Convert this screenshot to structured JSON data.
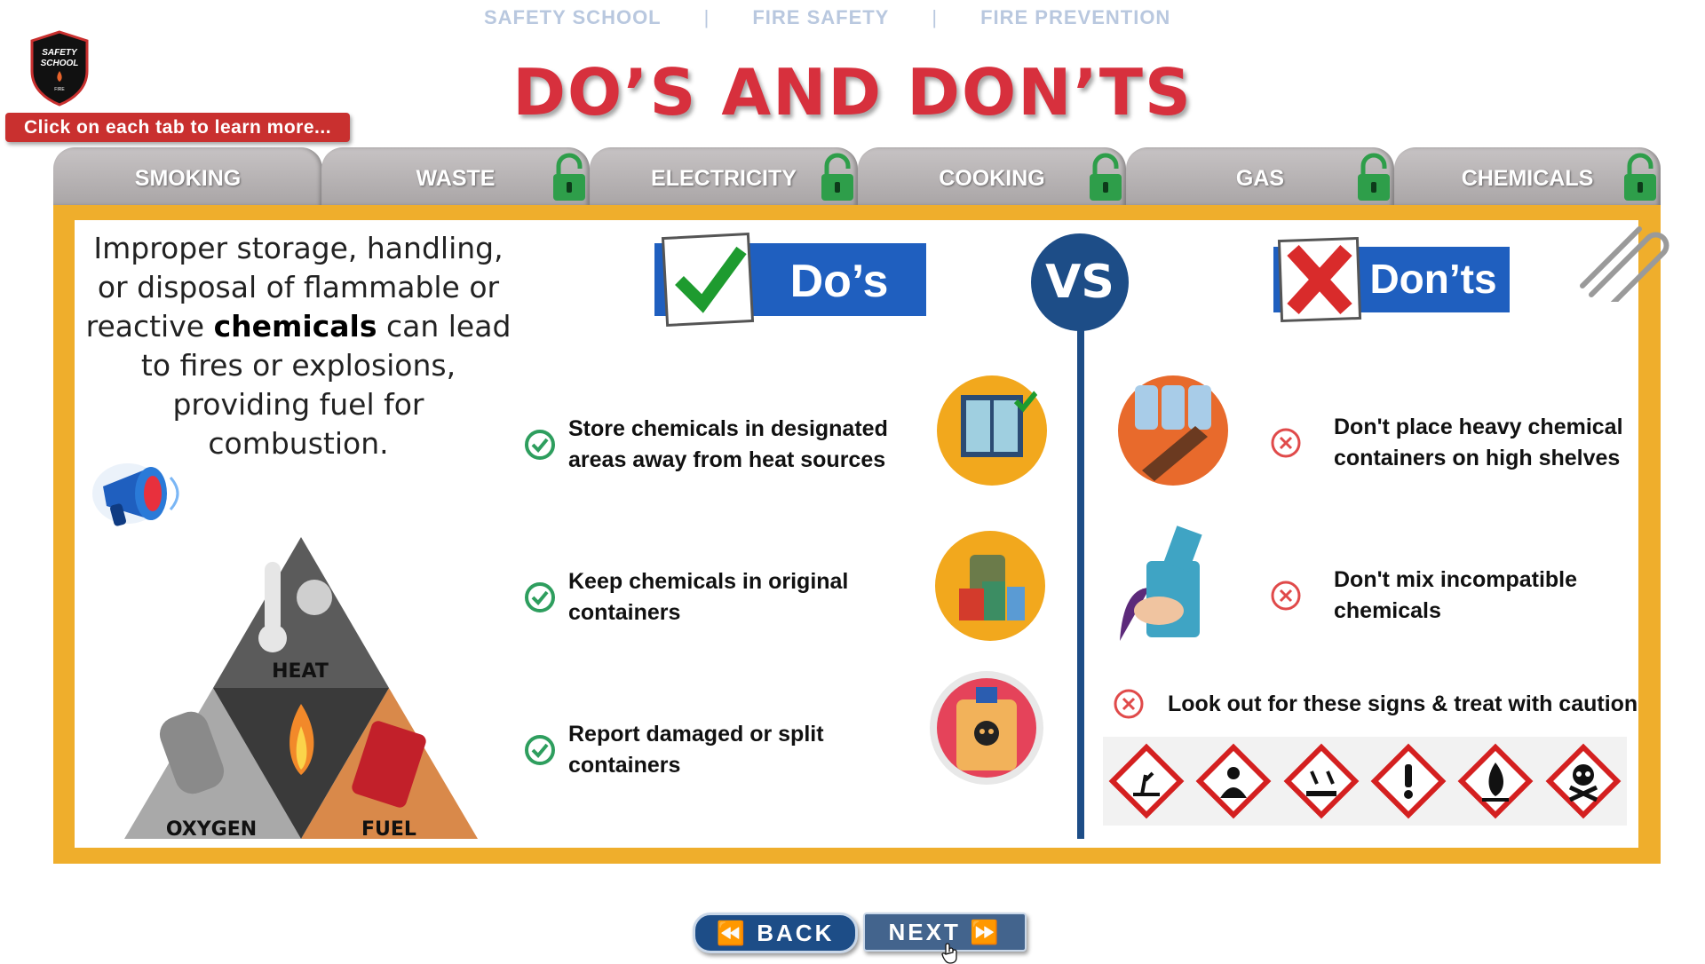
{
  "breadcrumb": {
    "items": [
      "SAFETY SCHOOL",
      "FIRE SAFETY",
      "FIRE PREVENTION"
    ],
    "separator": "|"
  },
  "logo": {
    "text": [
      "SAFETY",
      "SCHOOL",
      "FIRE"
    ]
  },
  "hint": "Click on each tab to learn more...",
  "title": "DO’S AND DON’TS",
  "tabs": [
    {
      "label": "SMOKING",
      "locked": false
    },
    {
      "label": "WASTE",
      "locked": true
    },
    {
      "label": "ELECTRICITY",
      "locked": true
    },
    {
      "label": "COOKING",
      "locked": true
    },
    {
      "label": "GAS",
      "locked": true
    },
    {
      "label": "CHEMICALS",
      "locked": true
    }
  ],
  "intro": {
    "before": "Improper storage, handling, or disposal of flammable or reactive ",
    "bold": "chemicals",
    "after": " can lead to fires or explosions, providing fuel for combustion."
  },
  "fire_triangle": {
    "labels": [
      "HEAT",
      "OXYGEN",
      "FUEL"
    ]
  },
  "dos": {
    "label": "Do’s",
    "items": [
      "Store chemicals in designated areas away from heat sources",
      "Keep chemicals in original containers",
      "Report damaged or split containers"
    ]
  },
  "vs": "VS",
  "donts": {
    "label": "Don’ts",
    "items": [
      "Don't place heavy chemical containers on high shelves",
      "Don't mix incompatible chemicals"
    ],
    "lookout": "Look out for these signs & treat with caution"
  },
  "hazard_signs": [
    "environment-hazard-icon",
    "health-hazard-icon",
    "corrosive-icon",
    "exclamation-mark-icon",
    "flammable-icon",
    "toxic-skull-icon"
  ],
  "nav": {
    "back": "BACK",
    "next": "NEXT"
  },
  "colors": {
    "accent_red": "#d7303d",
    "board_orange": "#efae2c",
    "navy": "#1d4d87",
    "tab_gray": "#b8b4b5",
    "check_green": "#2e9e5e"
  }
}
